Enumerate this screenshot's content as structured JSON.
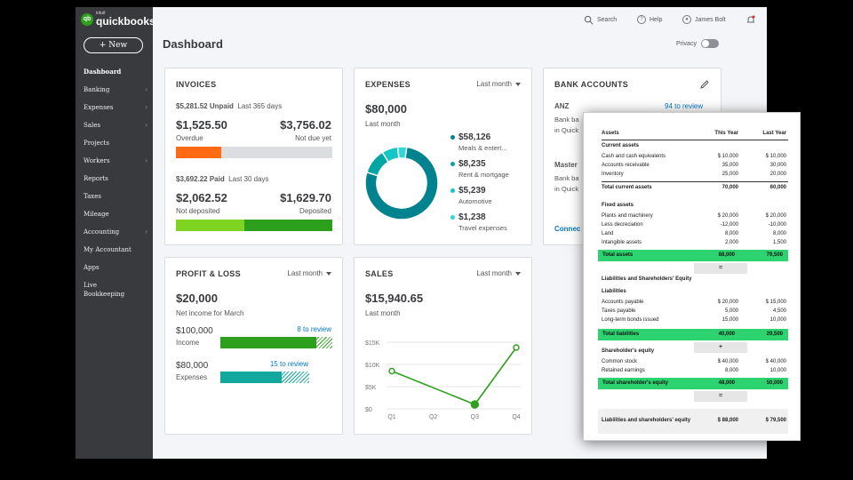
{
  "app": {
    "logo_small": "intuit",
    "logo_big": "quickbooks",
    "logo_mark": "qb",
    "new_label": "+ New",
    "page_title": "Dashboard",
    "privacy_label": "Privacy"
  },
  "topbar": {
    "search": "Search",
    "help": "Help",
    "user": "James Bolt"
  },
  "nav": [
    {
      "label": "Dashboard",
      "chev": false
    },
    {
      "label": "Banking",
      "chev": true
    },
    {
      "label": "Expenses",
      "chev": true
    },
    {
      "label": "Sales",
      "chev": true
    },
    {
      "label": "Projects",
      "chev": false
    },
    {
      "label": "Workers",
      "chev": true
    },
    {
      "label": "Reports",
      "chev": false
    },
    {
      "label": "Taxes",
      "chev": false
    },
    {
      "label": "Mileage",
      "chev": false
    },
    {
      "label": "Accounting",
      "chev": true
    },
    {
      "label": "My Accountant",
      "chev": false
    },
    {
      "label": "Apps",
      "chev": false
    },
    {
      "label": "Live Bookkeeping",
      "chev": false
    }
  ],
  "invoices": {
    "title": "INVOICES",
    "unpaid_amount": "$5,281.52 Unpaid",
    "unpaid_period": "Last 365 days",
    "overdue_value": "$1,525.50",
    "overdue_label": "Overdue",
    "notdue_value": "$3,756.02",
    "notdue_label": "Not due yet",
    "overdue_fraction": 0.29,
    "paid_amount": "$3,692.22 Paid",
    "paid_period": "Last 30 days",
    "notdeposited_value": "$2,062.52",
    "notdeposited_label": "Not deposited",
    "deposited_value": "$1,629.70",
    "deposited_label": "Deposited",
    "notdeposited_fraction": 0.44
  },
  "expenses": {
    "title": "EXPENSES",
    "period": "Last month",
    "total": "$80,000",
    "total_label": "Last month",
    "items": [
      {
        "amount": "$58,126",
        "label": "Meals & entert...",
        "color": "#00838f",
        "value": 58126
      },
      {
        "amount": "$8,235",
        "label": "Rent & mortgage",
        "color": "#00a6a4",
        "value": 8235
      },
      {
        "amount": "$5,239",
        "label": "Automotive",
        "color": "#14c6c6",
        "value": 5239
      },
      {
        "amount": "$1,238",
        "label": "Travel expenses",
        "color": "#33d6d6",
        "value": 1238
      }
    ]
  },
  "bank": {
    "title": "BANK ACCOUNTS",
    "account1": "ANZ",
    "review": "94 to review",
    "account1_line1": "Bank ba",
    "account1_line2": "in Quick",
    "account2": "Master",
    "account2_line1": "Bank ba",
    "account2_line2": "in Quick",
    "connect": "Connec"
  },
  "pnl": {
    "title": "PROFIT & LOSS",
    "period": "Last month",
    "net": "$20,000",
    "net_label": "Net income for March",
    "income_value": "$100,000",
    "income_label": "Income",
    "income_review": "8 to review",
    "income_fraction": 0.86,
    "expenses_value": "$80,000",
    "expenses_label": "Expenses",
    "expenses_review": "15 to review",
    "expenses_fraction": 0.69
  },
  "sales": {
    "title": "SALES",
    "period": "Last month",
    "total": "$15,940.65",
    "total_label": "Last month"
  },
  "chart_data": {
    "type": "line",
    "title": "SALES",
    "categories": [
      "Q1",
      "Q2",
      "Q3",
      "Q4"
    ],
    "x": [
      0,
      1,
      2,
      3
    ],
    "values": [
      [
        0,
        8500
      ],
      [
        2,
        1000
      ],
      [
        3,
        13800
      ]
    ],
    "y_ticks": [
      "$0",
      "$5K",
      "$10K",
      "$15K"
    ],
    "ylim": [
      0,
      15000
    ],
    "color": "#2ca01c"
  },
  "balance_sheet": {
    "header": [
      "Assets",
      "This Year",
      "Last Year"
    ],
    "current_assets_title": "Current assets",
    "current_assets": [
      [
        "Cash and cash equivalents",
        "$ 10,000",
        "$ 10,000"
      ],
      [
        "Accounts receivable",
        "35,000",
        "30,000"
      ],
      [
        "Inventory",
        "25,000",
        "20,000"
      ]
    ],
    "total_current": [
      "Total current assets",
      "70,000",
      "60,000"
    ],
    "fixed_assets_title": "Fixed assets",
    "fixed_assets": [
      [
        "Plants and machinery",
        "$ 20,000",
        "$ 20,000"
      ],
      [
        "Less decreciation",
        "-12,000",
        "-10,000"
      ],
      [
        "Land",
        "8,000",
        "8,000"
      ],
      [
        "Intangible assets",
        "2,000",
        "1,500"
      ]
    ],
    "total_assets": [
      "Total assets",
      "88,000",
      "79,500"
    ],
    "op_equals": "=",
    "liab_title": "Liabilities and Shareholders' Equity",
    "liabilities_title": "Liabilities",
    "liabilities": [
      [
        "Accounts payable",
        "$ 20,000",
        "$ 15,000"
      ],
      [
        "Taxes payable",
        "5,000",
        "4,500"
      ],
      [
        "Long-term bonds issued",
        "15,000",
        "10,000"
      ]
    ],
    "total_liabilities": [
      "Total liabilities",
      "40,000",
      "29,500"
    ],
    "op_plus": "+",
    "equity_title": "Shareholder's equity",
    "equity": [
      [
        "Common stock",
        "$ 40,000",
        "$ 40,000"
      ],
      [
        "Retained earnings",
        "8,000",
        "10,000"
      ]
    ],
    "total_equity": [
      "Total shareholder's equity",
      "48,000",
      "50,000"
    ],
    "op_equals2": "=",
    "grand_total": [
      "Liabilities and shareholders' equity",
      "$ 88,000",
      "$ 79,500"
    ]
  }
}
